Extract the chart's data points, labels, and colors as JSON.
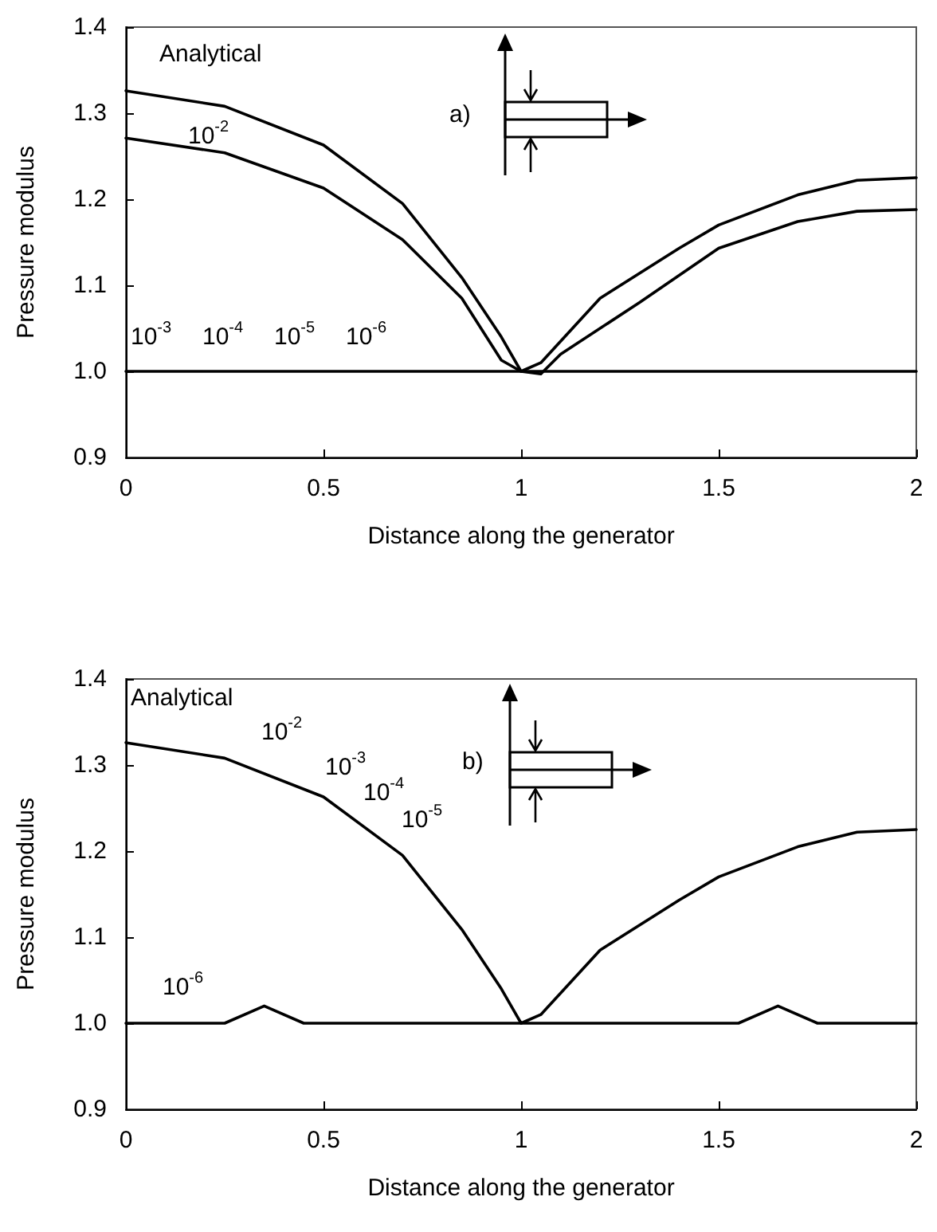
{
  "chart_data": [
    {
      "type": "line",
      "xlabel": "Distance along the generator",
      "ylabel": "Pressure modulus",
      "xlim": [
        0,
        2
      ],
      "ylim": [
        0.9,
        1.4
      ],
      "xticks": [
        0,
        0.5,
        1,
        1.5,
        2
      ],
      "yticks": [
        0.9,
        {
          "value": 1,
          "label": "1.0"
        },
        1.1,
        1.2,
        1.3,
        1.4
      ],
      "grid": false,
      "marker": "none",
      "line_style": "solid",
      "series": [
        {
          "color": "#000000",
          "x": [
            0,
            0.25,
            0.5,
            0.7,
            0.85,
            0.95,
            1.0,
            1.05,
            1.2,
            1.4,
            1.5,
            1.7,
            1.85,
            2
          ],
          "values": [
            1.326,
            1.308,
            1.263,
            1.195,
            1.109,
            1.04,
            1.0,
            1.01,
            1.085,
            1.143,
            1.17,
            1.205,
            1.222,
            1.225
          ]
        },
        {
          "color": "#000000",
          "x": [
            0,
            0.25,
            0.5,
            0.7,
            0.85,
            0.95,
            1.0,
            1.05,
            1.1,
            1.3,
            1.5,
            1.7,
            1.85,
            2
          ],
          "values": [
            1.271,
            1.254,
            1.213,
            1.153,
            1.085,
            1.013,
            1.0,
            0.997,
            1.02,
            1.08,
            1.143,
            1.174,
            1.186,
            1.188
          ]
        },
        {
          "color": "#000000",
          "x": [
            0,
            2
          ],
          "values": [
            1,
            1
          ]
        }
      ],
      "annotations": [
        "a)",
        "Analytical",
        "10$^{-2}$",
        "10$^{-3}$",
        "10$^{-4}$",
        "10$^{-5}$",
        "10$^{-6}$"
      ]
    },
    {
      "type": "line",
      "xlabel": "Distance along the generator",
      "ylabel": "Pressure modulus",
      "xlim": [
        0,
        2
      ],
      "ylim": [
        0.9,
        1.4
      ],
      "xticks": [
        0,
        0.5,
        1,
        1.5,
        2
      ],
      "yticks": [
        0.9,
        {
          "value": 1,
          "label": "1.0"
        },
        1.1,
        1.2,
        1.3,
        1.4
      ],
      "grid": false,
      "marker": "none",
      "line_style": "solid",
      "series": [
        {
          "color": "#000000",
          "x": [
            0,
            0.25,
            0.5,
            0.7,
            0.85,
            0.95,
            1.0,
            1.05,
            1.2,
            1.4,
            1.5,
            1.7,
            1.85,
            2
          ],
          "values": [
            1.326,
            1.308,
            1.263,
            1.195,
            1.109,
            1.04,
            1.0,
            1.01,
            1.085,
            1.143,
            1.17,
            1.205,
            1.222,
            1.225
          ]
        },
        {
          "color": "#000000",
          "x": [
            0,
            0.25,
            0.35,
            0.45,
            1,
            1.55,
            1.65,
            1.75,
            2
          ],
          "values": [
            1,
            1,
            1.02,
            1,
            1,
            1,
            1.02,
            1,
            1
          ]
        }
      ],
      "annotations": [
        "b)",
        "Analytical",
        "10$^{-2}$",
        "10$^{-3}$",
        "10$^{-4}$",
        "10$^{-5}$",
        "10$^{-6}$"
      ]
    }
  ]
}
